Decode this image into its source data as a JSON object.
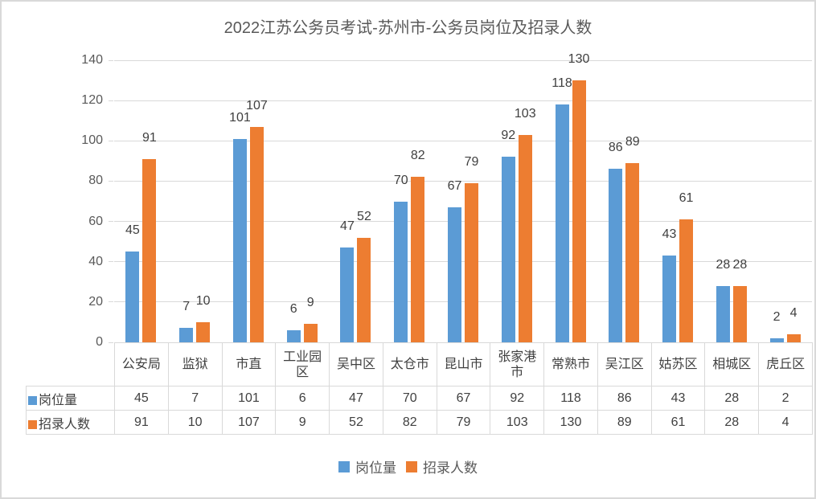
{
  "title": "2022江苏公务员考试-苏州市-公务员岗位及招录人数",
  "colors": {
    "series1": "#5B9BD5",
    "series2": "#ED7D31",
    "gridline": "#D9D9D9",
    "axis_text": "#595959",
    "label_text": "#3F3F3F"
  },
  "chart_data": {
    "type": "bar",
    "title": "2022江苏公务员考试-苏州市-公务员岗位及招录人数",
    "categories": [
      "公安局",
      "监狱",
      "市直",
      "工业园区",
      "吴中区",
      "太仓市",
      "昆山市",
      "张家港市",
      "常熟市",
      "吴江区",
      "姑苏区",
      "相城区",
      "虎丘区"
    ],
    "series": [
      {
        "name": "岗位量",
        "color": "#5B9BD5",
        "values": [
          45,
          7,
          101,
          6,
          47,
          70,
          67,
          92,
          118,
          86,
          43,
          28,
          2
        ]
      },
      {
        "name": "招录人数",
        "color": "#ED7D31",
        "values": [
          91,
          10,
          107,
          9,
          52,
          82,
          79,
          103,
          130,
          89,
          61,
          28,
          4
        ]
      }
    ],
    "xlabel": "",
    "ylabel": "",
    "ylim": [
      0,
      140
    ],
    "yticks": [
      0,
      20,
      40,
      60,
      80,
      100,
      120,
      140
    ],
    "grid": true,
    "data_labels": true,
    "data_table": true,
    "legend_position": "bottom"
  },
  "legend": {
    "items": [
      {
        "label": "岗位量",
        "color": "#5B9BD5"
      },
      {
        "label": "招录人数",
        "color": "#ED7D31"
      }
    ]
  }
}
